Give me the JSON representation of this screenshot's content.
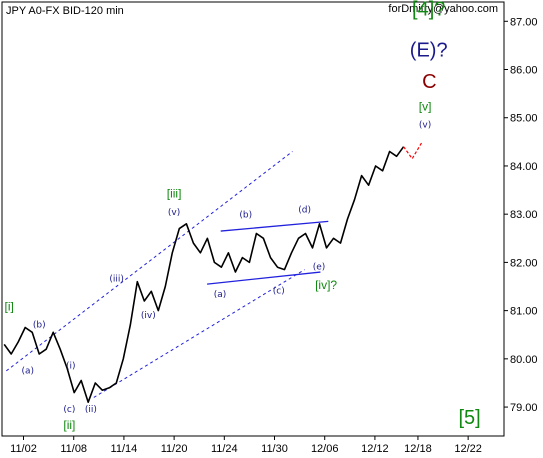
{
  "chart_data": {
    "type": "line",
    "title": "JPY A0-FX BID-120 min",
    "author": "forDmitry@yahoo.com",
    "x_ticks": [
      "11/02",
      "11/08",
      "11/14",
      "11/20",
      "11/24",
      "11/30",
      "12/06",
      "12/12",
      "12/18",
      "12/22"
    ],
    "y_ticks": [
      "79.00",
      "80.00",
      "81.00",
      "82.00",
      "83.00",
      "84.00",
      "85.00",
      "86.00",
      "87.00"
    ],
    "ylim": [
      78.4,
      87.4
    ],
    "grid": false,
    "series": [
      {
        "values": [
          80.3,
          80.1,
          80.35,
          80.65,
          80.55,
          80.1,
          80.2,
          80.55,
          80.2,
          79.8,
          79.3,
          79.55,
          79.1,
          79.5,
          79.35,
          79.4,
          79.5,
          80.0,
          80.7,
          81.6,
          81.2,
          81.4,
          81.0,
          81.5,
          82.2,
          82.7,
          82.8,
          82.4,
          82.2,
          82.5,
          82.0,
          81.9,
          82.2,
          81.8,
          82.1,
          82.0,
          82.6,
          82.5,
          82.1,
          81.9,
          81.85,
          82.2,
          82.5,
          82.6,
          82.3,
          82.8,
          82.3,
          82.5,
          82.4,
          82.9,
          83.3,
          83.8,
          83.6,
          84.0,
          83.9,
          84.3,
          84.2,
          84.4
        ]
      },
      {
        "values": [
          84.4,
          84.15,
          84.5
        ]
      }
    ],
    "wave_labels": [
      {
        "text": "[4]?",
        "x": 59.5,
        "y": 87.12,
        "color": "#118811"
      },
      {
        "text": "(E)?",
        "x": 59.5,
        "y": 86.27,
        "color": "#1a1a8c"
      },
      {
        "text": "C",
        "x": 59.6,
        "y": 85.62,
        "color": "#8b0000"
      },
      {
        "text": "[v]",
        "x": 59.0,
        "y": 85.15,
        "color": "#118811"
      },
      {
        "text": "(v)",
        "x": 59.0,
        "y": 84.8,
        "color": "#1a1a8c"
      },
      {
        "text": "[iii]",
        "x": 24.0,
        "y": 83.35,
        "color": "#118811"
      },
      {
        "text": "(v)",
        "x": 24.0,
        "y": 82.98,
        "color": "#1a1a8c"
      },
      {
        "text": "(b)",
        "x": 34.0,
        "y": 82.93,
        "color": "#1a1a8c"
      },
      {
        "text": "(d)",
        "x": 42.2,
        "y": 83.03,
        "color": "#1a1a8c"
      },
      {
        "text": "(iii)",
        "x": 16.0,
        "y": 81.6,
        "color": "#1a1a8c"
      },
      {
        "text": "(iv)",
        "x": 20.4,
        "y": 80.85,
        "color": "#1a1a8c"
      },
      {
        "text": "(a)",
        "x": 30.4,
        "y": 81.28,
        "color": "#1a1a8c"
      },
      {
        "text": "(c)",
        "x": 38.6,
        "y": 81.35,
        "color": "#1a1a8c"
      },
      {
        "text": "(e)",
        "x": 44.2,
        "y": 81.85,
        "color": "#1a1a8c"
      },
      {
        "text": "[iv]?",
        "x": 45.2,
        "y": 81.45,
        "color": "#118811"
      },
      {
        "text": "[i]",
        "x": 1.0,
        "y": 81.0,
        "color": "#118811"
      },
      {
        "text": "(b)",
        "x": 5.2,
        "y": 80.65,
        "color": "#1a1a8c"
      },
      {
        "text": "(a)",
        "x": 3.6,
        "y": 79.7,
        "color": "#1a1a8c"
      },
      {
        "text": "(i)",
        "x": 9.6,
        "y": 79.8,
        "color": "#1a1a8c"
      },
      {
        "text": "(c)",
        "x": 9.4,
        "y": 78.9,
        "color": "#1a1a8c"
      },
      {
        "text": "(ii)",
        "x": 12.4,
        "y": 78.9,
        "color": "#1a1a8c"
      },
      {
        "text": "[ii]",
        "x": 9.4,
        "y": 78.55,
        "color": "#118811"
      },
      {
        "text": "[5]",
        "x": 65.2,
        "y": 78.65,
        "color": "#118811"
      }
    ]
  },
  "colors": {
    "price": "#000000",
    "projection": "#ff0000",
    "channel": "#2222dd",
    "triangle": "#2222dd",
    "green": "#118811",
    "blue": "#1a1a8c",
    "red": "#8b0000"
  }
}
